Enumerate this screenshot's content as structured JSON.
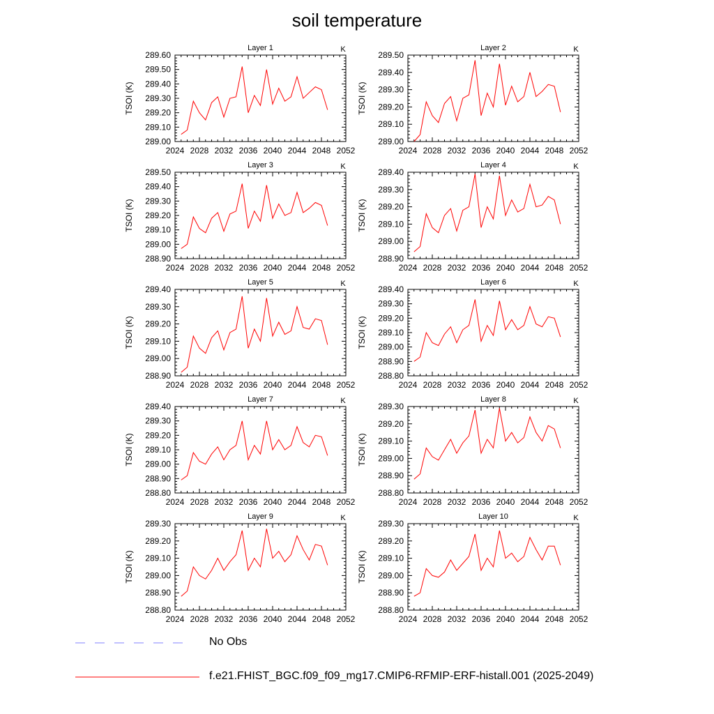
{
  "title": "soil temperature",
  "colors": {
    "model_line": "#ff0000",
    "obs_line": "#9999ff",
    "axes": "#000000"
  },
  "legend": [
    {
      "style": "dashed",
      "color": "#9999ff",
      "label": "No Obs"
    },
    {
      "style": "solid",
      "color": "#ff0000",
      "label": "f.e21.FHIST_BGC.f09_f09_mg17.CMIP6-RFMIP-ERF-histall.001 (2025-2049)"
    }
  ],
  "chart_data": [
    {
      "type": "line",
      "title": "Layer 1",
      "units": "K",
      "ylabel": "TSOI  (K)",
      "xlim": [
        2024,
        2052
      ],
      "ylim": [
        289.0,
        289.6
      ],
      "xticks": [
        "2024",
        "2028",
        "2032",
        "2036",
        "2040",
        "2044",
        "2048",
        "2052"
      ],
      "yticks": [
        "289.00",
        "289.10",
        "289.20",
        "289.30",
        "289.40",
        "289.50",
        "289.60"
      ],
      "x": [
        2025,
        2026,
        2027,
        2028,
        2029,
        2030,
        2031,
        2032,
        2033,
        2034,
        2035,
        2036,
        2037,
        2038,
        2039,
        2040,
        2041,
        2042,
        2043,
        2044,
        2045,
        2046,
        2047,
        2048,
        2049
      ],
      "series": [
        {
          "values": [
            289.05,
            289.08,
            289.28,
            289.2,
            289.15,
            289.27,
            289.31,
            289.17,
            289.3,
            289.31,
            289.52,
            289.2,
            289.32,
            289.25,
            289.5,
            289.26,
            289.37,
            289.28,
            289.31,
            289.45,
            289.3,
            289.34,
            289.38,
            289.36,
            289.22
          ]
        }
      ]
    },
    {
      "type": "line",
      "title": "Layer 2",
      "units": "K",
      "ylabel": "TSOI  (K)",
      "xlim": [
        2024,
        2052
      ],
      "ylim": [
        289.0,
        289.5
      ],
      "xticks": [
        "2024",
        "2028",
        "2032",
        "2036",
        "2040",
        "2044",
        "2048",
        "2052"
      ],
      "yticks": [
        "289.00",
        "289.10",
        "289.20",
        "289.30",
        "289.40",
        "289.50"
      ],
      "x": [
        2025,
        2026,
        2027,
        2028,
        2029,
        2030,
        2031,
        2032,
        2033,
        2034,
        2035,
        2036,
        2037,
        2038,
        2039,
        2040,
        2041,
        2042,
        2043,
        2044,
        2045,
        2046,
        2047,
        2048,
        2049
      ],
      "series": [
        {
          "values": [
            289.0,
            289.04,
            289.23,
            289.15,
            289.11,
            289.22,
            289.26,
            289.12,
            289.25,
            289.27,
            289.47,
            289.15,
            289.28,
            289.2,
            289.45,
            289.21,
            289.32,
            289.23,
            289.26,
            289.4,
            289.26,
            289.29,
            289.33,
            289.32,
            289.17
          ]
        }
      ]
    },
    {
      "type": "line",
      "title": "Layer 3",
      "units": "K",
      "ylabel": "TSOI  (K)",
      "xlim": [
        2024,
        2052
      ],
      "ylim": [
        288.9,
        289.5
      ],
      "xticks": [
        "2024",
        "2028",
        "2032",
        "2036",
        "2040",
        "2044",
        "2048",
        "2052"
      ],
      "yticks": [
        "288.90",
        "289.00",
        "289.10",
        "289.20",
        "289.30",
        "289.40",
        "289.50"
      ],
      "x": [
        2025,
        2026,
        2027,
        2028,
        2029,
        2030,
        2031,
        2032,
        2033,
        2034,
        2035,
        2036,
        2037,
        2038,
        2039,
        2040,
        2041,
        2042,
        2043,
        2044,
        2045,
        2046,
        2047,
        2048,
        2049
      ],
      "series": [
        {
          "values": [
            288.97,
            289.0,
            289.19,
            289.11,
            289.08,
            289.18,
            289.22,
            289.09,
            289.21,
            289.23,
            289.42,
            289.11,
            289.23,
            289.16,
            289.41,
            289.18,
            289.28,
            289.2,
            289.22,
            289.36,
            289.22,
            289.25,
            289.29,
            289.27,
            289.13
          ]
        }
      ]
    },
    {
      "type": "line",
      "title": "Layer 4",
      "units": "K",
      "ylabel": "TSOI  (K)",
      "xlim": [
        2024,
        2052
      ],
      "ylim": [
        288.9,
        289.4
      ],
      "xticks": [
        "2024",
        "2028",
        "2032",
        "2036",
        "2040",
        "2044",
        "2048",
        "2052"
      ],
      "yticks": [
        "288.90",
        "289.00",
        "289.10",
        "289.20",
        "289.30",
        "289.40"
      ],
      "x": [
        2025,
        2026,
        2027,
        2028,
        2029,
        2030,
        2031,
        2032,
        2033,
        2034,
        2035,
        2036,
        2037,
        2038,
        2039,
        2040,
        2041,
        2042,
        2043,
        2044,
        2045,
        2046,
        2047,
        2048,
        2049
      ],
      "series": [
        {
          "values": [
            288.94,
            288.97,
            289.16,
            289.08,
            289.05,
            289.15,
            289.19,
            289.06,
            289.18,
            289.2,
            289.39,
            289.08,
            289.2,
            289.13,
            289.38,
            289.15,
            289.24,
            289.17,
            289.19,
            289.33,
            289.2,
            289.21,
            289.26,
            289.24,
            289.1
          ]
        }
      ]
    },
    {
      "type": "line",
      "title": "Layer 5",
      "units": "K",
      "ylabel": "TSOI  (K)",
      "xlim": [
        2024,
        2052
      ],
      "ylim": [
        288.9,
        289.4
      ],
      "xticks": [
        "2024",
        "2028",
        "2032",
        "2036",
        "2040",
        "2044",
        "2048",
        "2052"
      ],
      "yticks": [
        "288.90",
        "289.00",
        "289.10",
        "289.20",
        "289.30",
        "289.40"
      ],
      "x": [
        2025,
        2026,
        2027,
        2028,
        2029,
        2030,
        2031,
        2032,
        2033,
        2034,
        2035,
        2036,
        2037,
        2038,
        2039,
        2040,
        2041,
        2042,
        2043,
        2044,
        2045,
        2046,
        2047,
        2048,
        2049
      ],
      "series": [
        {
          "values": [
            288.92,
            288.95,
            289.13,
            289.06,
            289.03,
            289.12,
            289.16,
            289.05,
            289.15,
            289.17,
            289.36,
            289.06,
            289.17,
            289.1,
            289.35,
            289.13,
            289.21,
            289.14,
            289.16,
            289.3,
            289.18,
            289.17,
            289.23,
            289.22,
            289.08
          ]
        }
      ]
    },
    {
      "type": "line",
      "title": "Layer 6",
      "units": "K",
      "ylabel": "TSOI  (K)",
      "xlim": [
        2024,
        2052
      ],
      "ylim": [
        288.8,
        289.4
      ],
      "xticks": [
        "2024",
        "2028",
        "2032",
        "2036",
        "2040",
        "2044",
        "2048",
        "2052"
      ],
      "yticks": [
        "288.80",
        "288.90",
        "289.00",
        "289.10",
        "289.20",
        "289.30",
        "289.40"
      ],
      "x": [
        2025,
        2026,
        2027,
        2028,
        2029,
        2030,
        2031,
        2032,
        2033,
        2034,
        2035,
        2036,
        2037,
        2038,
        2039,
        2040,
        2041,
        2042,
        2043,
        2044,
        2045,
        2046,
        2047,
        2048,
        2049
      ],
      "series": [
        {
          "values": [
            288.9,
            288.93,
            289.1,
            289.03,
            289.01,
            289.09,
            289.14,
            289.03,
            289.12,
            289.15,
            289.33,
            289.04,
            289.15,
            289.08,
            289.32,
            289.12,
            289.19,
            289.12,
            289.15,
            289.28,
            289.16,
            289.14,
            289.21,
            289.2,
            289.07
          ]
        }
      ]
    },
    {
      "type": "line",
      "title": "Layer 7",
      "units": "K",
      "ylabel": "TSOI  (K)",
      "xlim": [
        2024,
        2052
      ],
      "ylim": [
        288.8,
        289.4
      ],
      "xticks": [
        "2024",
        "2028",
        "2032",
        "2036",
        "2040",
        "2044",
        "2048",
        "2052"
      ],
      "yticks": [
        "288.80",
        "288.90",
        "289.00",
        "289.10",
        "289.20",
        "289.30",
        "289.40"
      ],
      "x": [
        2025,
        2026,
        2027,
        2028,
        2029,
        2030,
        2031,
        2032,
        2033,
        2034,
        2035,
        2036,
        2037,
        2038,
        2039,
        2040,
        2041,
        2042,
        2043,
        2044,
        2045,
        2046,
        2047,
        2048,
        2049
      ],
      "series": [
        {
          "values": [
            288.89,
            288.92,
            289.08,
            289.02,
            289.0,
            289.07,
            289.12,
            289.03,
            289.1,
            289.13,
            289.3,
            289.03,
            289.13,
            289.07,
            289.3,
            289.1,
            289.17,
            289.1,
            289.13,
            289.26,
            289.15,
            289.12,
            289.2,
            289.19,
            289.06
          ]
        }
      ]
    },
    {
      "type": "line",
      "title": "Layer 8",
      "units": "K",
      "ylabel": "TSOI  (K)",
      "xlim": [
        2024,
        2052
      ],
      "ylim": [
        288.8,
        289.3
      ],
      "xticks": [
        "2024",
        "2028",
        "2032",
        "2036",
        "2040",
        "2044",
        "2048",
        "2052"
      ],
      "yticks": [
        "288.80",
        "288.90",
        "289.00",
        "289.10",
        "289.20",
        "289.30"
      ],
      "x": [
        2025,
        2026,
        2027,
        2028,
        2029,
        2030,
        2031,
        2032,
        2033,
        2034,
        2035,
        2036,
        2037,
        2038,
        2039,
        2040,
        2041,
        2042,
        2043,
        2044,
        2045,
        2046,
        2047,
        2048,
        2049
      ],
      "series": [
        {
          "values": [
            288.88,
            288.91,
            289.06,
            289.01,
            288.99,
            289.05,
            289.11,
            289.03,
            289.09,
            289.13,
            289.28,
            289.03,
            289.11,
            289.06,
            289.29,
            289.1,
            289.15,
            289.09,
            289.12,
            289.24,
            289.15,
            289.1,
            289.19,
            289.17,
            289.06
          ]
        }
      ]
    },
    {
      "type": "line",
      "title": "Layer 9",
      "units": "K",
      "ylabel": "TSOI  (K)",
      "xlim": [
        2024,
        2052
      ],
      "ylim": [
        288.8,
        289.3
      ],
      "xticks": [
        "2024",
        "2028",
        "2032",
        "2036",
        "2040",
        "2044",
        "2048",
        "2052"
      ],
      "yticks": [
        "288.80",
        "288.90",
        "289.00",
        "289.10",
        "289.20",
        "289.30"
      ],
      "x": [
        2025,
        2026,
        2027,
        2028,
        2029,
        2030,
        2031,
        2032,
        2033,
        2034,
        2035,
        2036,
        2037,
        2038,
        2039,
        2040,
        2041,
        2042,
        2043,
        2044,
        2045,
        2046,
        2047,
        2048,
        2049
      ],
      "series": [
        {
          "values": [
            288.88,
            288.91,
            289.05,
            289.0,
            288.98,
            289.03,
            289.1,
            289.03,
            289.08,
            289.12,
            289.26,
            289.03,
            289.1,
            289.05,
            289.27,
            289.1,
            289.14,
            289.08,
            289.12,
            289.23,
            289.15,
            289.09,
            289.18,
            289.17,
            289.06
          ]
        }
      ]
    },
    {
      "type": "line",
      "title": "Layer 10",
      "units": "K",
      "ylabel": "TSOI  (K)",
      "xlim": [
        2024,
        2052
      ],
      "ylim": [
        288.8,
        289.3
      ],
      "xticks": [
        "2024",
        "2028",
        "2032",
        "2036",
        "2040",
        "2044",
        "2048",
        "2052"
      ],
      "yticks": [
        "288.80",
        "288.90",
        "289.00",
        "289.10",
        "289.20",
        "289.30"
      ],
      "x": [
        2025,
        2026,
        2027,
        2028,
        2029,
        2030,
        2031,
        2032,
        2033,
        2034,
        2035,
        2036,
        2037,
        2038,
        2039,
        2040,
        2041,
        2042,
        2043,
        2044,
        2045,
        2046,
        2047,
        2048,
        2049
      ],
      "series": [
        {
          "values": [
            288.88,
            288.9,
            289.04,
            289.0,
            288.99,
            289.02,
            289.09,
            289.03,
            289.07,
            289.11,
            289.24,
            289.03,
            289.1,
            289.05,
            289.26,
            289.1,
            289.13,
            289.08,
            289.11,
            289.22,
            289.15,
            289.09,
            289.17,
            289.17,
            289.06
          ]
        }
      ]
    }
  ]
}
